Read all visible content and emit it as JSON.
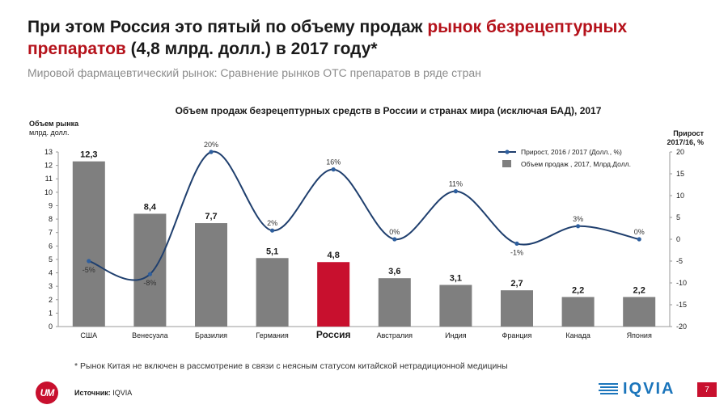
{
  "header": {
    "title_part1": "При этом Россия это пятый по объему продаж ",
    "title_accent": "рынок безрецептурных препаратов",
    "title_part2": " (4,8 млрд. долл.) в 2017 году*",
    "subtitle": "Мировой фармацевтический рынок: Сравнение рынков ОТС препаратов в ряде стран"
  },
  "chart_data": {
    "type": "bar",
    "title": "Объем продаж безрецептурных средств в России и странах мира (исключая БАД), 2017",
    "categories": [
      "США",
      "Венесуэла",
      "Бразилия",
      "Германия",
      "Россия",
      "Австралия",
      "Индия",
      "Франция",
      "Канада",
      "Япония"
    ],
    "highlight_category": "Россия",
    "y_left": {
      "label_bold": "Объем рынка",
      "label": "млрд. долл.",
      "lim": [
        0,
        13
      ],
      "ticks": [
        0,
        1,
        2,
        3,
        4,
        5,
        6,
        7,
        8,
        9,
        10,
        11,
        12,
        13
      ]
    },
    "y_right": {
      "label": "Прирост 2017/16, %",
      "lim": [
        -20,
        20
      ],
      "ticks": [
        -20,
        -15,
        -10,
        -5,
        0,
        5,
        10,
        15,
        20
      ]
    },
    "series": [
      {
        "name": "Объем продаж , 2017, Млрд.Долл.",
        "type": "bar",
        "axis": "left",
        "values": [
          12.3,
          8.4,
          7.7,
          5.1,
          4.8,
          3.6,
          3.1,
          2.7,
          2.2,
          2.2
        ],
        "labels": [
          "12,3",
          "8,4",
          "7,7",
          "5,1",
          "4,8",
          "3,6",
          "3,1",
          "2,7",
          "2,2",
          "2,2"
        ]
      },
      {
        "name": "Прирост, 2016 / 2017 (Долл., %)",
        "type": "line",
        "axis": "right",
        "values": [
          -5,
          -8,
          20,
          2,
          16,
          0,
          11,
          -1,
          3,
          0
        ],
        "labels": [
          "-5%",
          "-8%",
          "20%",
          "2%",
          "16%",
          "0%",
          "11%",
          "-1%",
          "3%",
          "0%"
        ]
      }
    ],
    "colors": {
      "bar": "#7f7f7f",
      "bar_highlight": "#c8102e",
      "line": "#1f3f6e",
      "marker": "#2e5f9e"
    }
  },
  "footer": {
    "footnote": "* Рынок Китая не включен в рассмотрение в связи с неясным статусом китайской нетрадиционной медицины",
    "source_label": "Источник:",
    "source_value": "IQVIA",
    "logo_um": "UM",
    "logo_iqvia": "IQVIA",
    "page_number": "7"
  }
}
